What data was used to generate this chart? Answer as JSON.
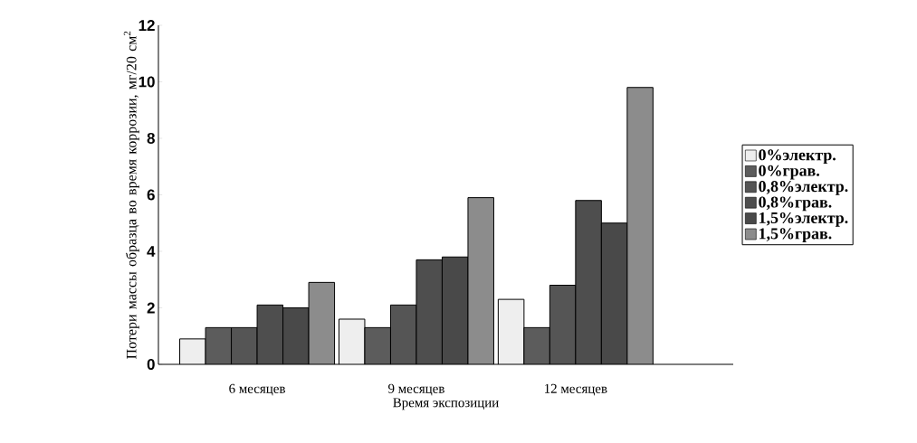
{
  "chart_data": {
    "type": "bar",
    "xlabel": "Время экспозиции",
    "ylabel": "Потери массы образца во время коррозии, мг/20 см$^{2}$",
    "categories": [
      "6 месяцев",
      "9 месяцев",
      "12 месяцев"
    ],
    "series": [
      {
        "name": "0%электр.",
        "color": "#eeeeee",
        "values": [
          0.9,
          1.6,
          2.3
        ]
      },
      {
        "name": "0%грав.",
        "color": "#5c5c5c",
        "values": [
          1.3,
          1.3,
          1.3
        ]
      },
      {
        "name": "0,8%электр.",
        "color": "#555555",
        "values": [
          1.3,
          2.1,
          2.8
        ]
      },
      {
        "name": "0,8%грав.",
        "color": "#4e4e4e",
        "values": [
          2.1,
          3.7,
          5.8
        ]
      },
      {
        "name": "1,5%электр.",
        "color": "#494949",
        "values": [
          2.0,
          3.8,
          5.0
        ]
      },
      {
        "name": "1,5%грав.",
        "color": "#8c8c8c",
        "values": [
          2.9,
          5.9,
          9.8
        ]
      }
    ],
    "ylim": [
      0,
      12
    ],
    "yticks": [
      0,
      2,
      4,
      6,
      8,
      10,
      12
    ],
    "legend": "right",
    "grid": false
  }
}
